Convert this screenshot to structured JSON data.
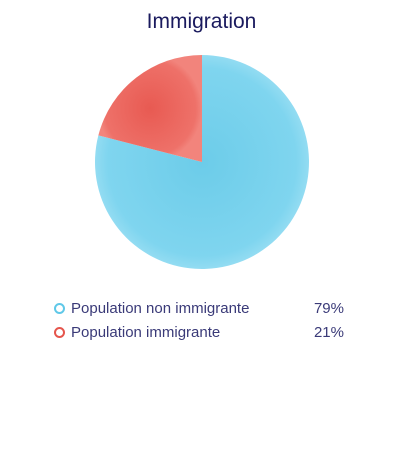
{
  "chart_data": {
    "type": "pie",
    "title": "Immigration",
    "slices": [
      {
        "label": "Population non immigrante",
        "value": 79,
        "value_label": "79%",
        "color": "#7dd3ee"
      },
      {
        "label": "Population immigrante",
        "value": 21,
        "value_label": "21%",
        "color": "#ec6a60"
      }
    ],
    "legend_position": "bottom"
  }
}
